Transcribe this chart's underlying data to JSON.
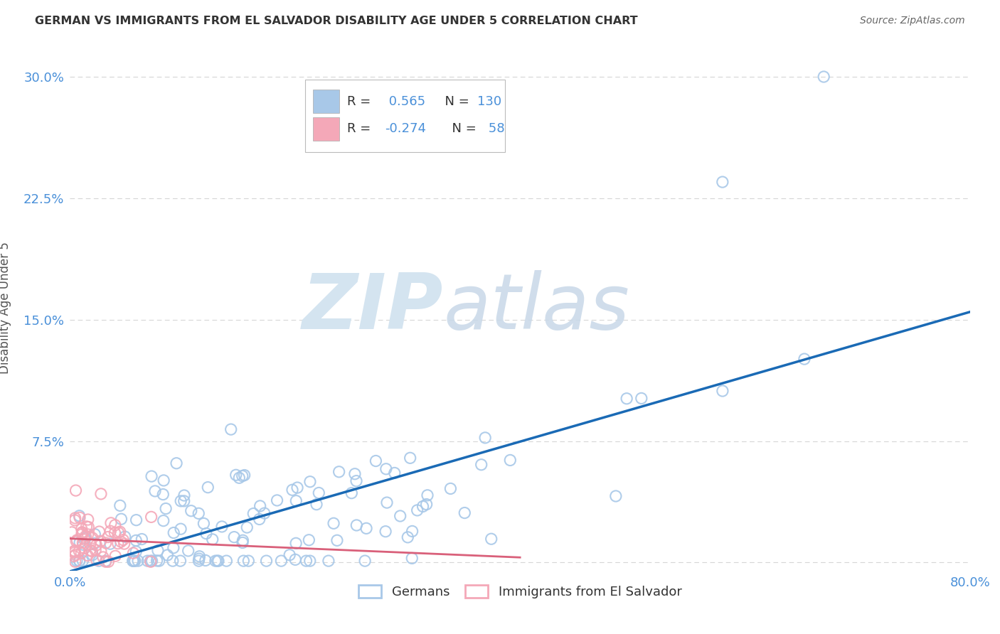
{
  "title": "GERMAN VS IMMIGRANTS FROM EL SALVADOR DISABILITY AGE UNDER 5 CORRELATION CHART",
  "source": "Source: ZipAtlas.com",
  "ylabel": "Disability Age Under 5",
  "xlim": [
    0.0,
    0.8
  ],
  "ylim": [
    -0.005,
    0.32
  ],
  "xticks": [
    0.0,
    0.1,
    0.2,
    0.3,
    0.4,
    0.5,
    0.6,
    0.7,
    0.8
  ],
  "yticks": [
    0.0,
    0.075,
    0.15,
    0.225,
    0.3
  ],
  "german_color": "#a8c8e8",
  "el_salvador_color": "#f4a8b8",
  "german_edge_color": "#6aaad4",
  "el_salvador_edge_color": "#e87fa0",
  "german_line_color": "#1a6ab5",
  "el_salvador_line_color": "#d9607a",
  "r_german": 0.565,
  "n_german": 130,
  "r_el_salvador": -0.274,
  "n_el_salvador": 58,
  "watermark_zip": "ZIP",
  "watermark_atlas": "atlas",
  "watermark_color": "#d4e4f0",
  "legend_labels": [
    "Germans",
    "Immigrants from El Salvador"
  ],
  "background_color": "#ffffff",
  "grid_color": "#cccccc",
  "title_color": "#333333",
  "tick_color": "#4a90d9",
  "legend_text_r_color": "#333333",
  "legend_text_n_color": "#4a90d9"
}
